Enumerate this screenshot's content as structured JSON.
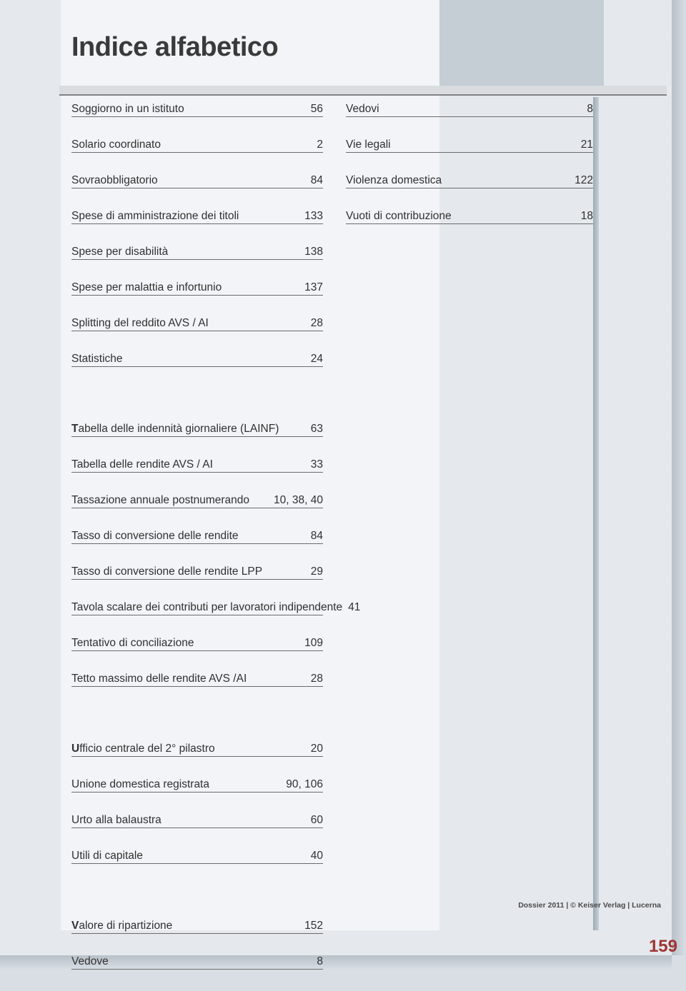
{
  "title": "Indice alfabetico",
  "footer": "Dossier 2011 | © Keiser Verlag | Lucerna",
  "page_number": "159",
  "colors": {
    "outer_bg": "#d8dee4",
    "page_bg": "#e5e9ed",
    "panel_bg": "#f2f4f7",
    "accent_bg": "#c5cdd5",
    "rule": "#6b6b6b",
    "title": "#3a3a3a",
    "text": "#303030",
    "page_num": "#a03535"
  },
  "typography": {
    "title_fontsize": 38,
    "row_fontsize": 15.5,
    "footer_fontsize": 10.5,
    "pagenum_fontsize": 24,
    "family": "Arial Narrow / condensed sans"
  },
  "left_column": [
    {
      "term": "Soggiorno in un istituto",
      "page": "56"
    },
    {
      "term": "Solario coordinato",
      "page": "2"
    },
    {
      "term": "Sovraobbligatorio",
      "page": "84"
    },
    {
      "term": "Spese di amministrazione dei titoli",
      "page": "133"
    },
    {
      "term": "Spese per disabilità",
      "page": "138"
    },
    {
      "term": "Spese per malattia e infortunio",
      "page": "137"
    },
    {
      "term": "Splitting del reddito AVS / AI",
      "page": "28"
    },
    {
      "term": "Statistiche",
      "page": "24"
    },
    {
      "gap": true
    },
    {
      "lead": "T",
      "term": "abella delle indennità giornaliere (LAINF)",
      "page": "63"
    },
    {
      "term": "Tabella delle rendite AVS / AI",
      "page": "33"
    },
    {
      "term": "Tassazione annuale postnumerando",
      "page": "10, 38, 40"
    },
    {
      "term": "Tasso di conversione  delle rendite",
      "page": "84"
    },
    {
      "term": "Tasso di conversione delle rendite LPP",
      "page": "29"
    },
    {
      "term": "Tavola scalare dei contributi per lavoratori indipendente",
      "page": "41"
    },
    {
      "term": "Tentativo di conciliazione",
      "page": "109"
    },
    {
      "term": "Tetto massimo delle rendite AVS /AI",
      "page": "28"
    },
    {
      "gap": true
    },
    {
      "lead": "U",
      "term": "fficio centrale del 2° pilastro",
      "page": "20"
    },
    {
      "term": "Unione domestica registrata",
      "page": "90, 106"
    },
    {
      "term": "Urto alla balaustra",
      "page": "60"
    },
    {
      "term": "Utili di capitale",
      "page": "40"
    },
    {
      "gap": true
    },
    {
      "lead": "V",
      "term": "alore di ripartizione",
      "page": "152"
    },
    {
      "term": "Vedove",
      "page": "8"
    }
  ],
  "right_column": [
    {
      "term": "Vedovi",
      "page": "8"
    },
    {
      "term": "Vie legali",
      "page": "21"
    },
    {
      "term": "Violenza  domestica",
      "page": "122"
    },
    {
      "term": "Vuoti di contribuzione",
      "page": "18"
    }
  ]
}
